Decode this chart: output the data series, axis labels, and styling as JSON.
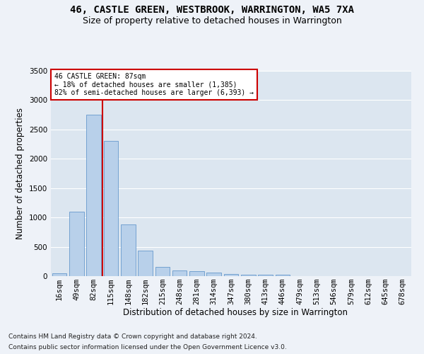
{
  "title1": "46, CASTLE GREEN, WESTBROOK, WARRINGTON, WA5 7XA",
  "title2": "Size of property relative to detached houses in Warrington",
  "xlabel": "Distribution of detached houses by size in Warrington",
  "ylabel": "Number of detached properties",
  "categories": [
    "16sqm",
    "49sqm",
    "82sqm",
    "115sqm",
    "148sqm",
    "182sqm",
    "215sqm",
    "248sqm",
    "281sqm",
    "314sqm",
    "347sqm",
    "380sqm",
    "413sqm",
    "446sqm",
    "479sqm",
    "513sqm",
    "546sqm",
    "579sqm",
    "612sqm",
    "645sqm",
    "678sqm"
  ],
  "values": [
    50,
    1100,
    2750,
    2300,
    880,
    430,
    160,
    100,
    90,
    55,
    40,
    30,
    30,
    30,
    0,
    0,
    0,
    0,
    0,
    0,
    0
  ],
  "bar_color": "#b8d0ea",
  "bar_edgecolor": "#6699cc",
  "vline_color": "#cc0000",
  "annotation_text": "46 CASTLE GREEN: 87sqm\n← 18% of detached houses are smaller (1,385)\n82% of semi-detached houses are larger (6,393) →",
  "annotation_box_facecolor": "#ffffff",
  "annotation_box_edgecolor": "#cc0000",
  "footer1": "Contains HM Land Registry data © Crown copyright and database right 2024.",
  "footer2": "Contains public sector information licensed under the Open Government Licence v3.0.",
  "ylim": [
    0,
    3500
  ],
  "yticks": [
    0,
    500,
    1000,
    1500,
    2000,
    2500,
    3000,
    3500
  ],
  "bg_color": "#eef2f8",
  "plot_bg_color": "#dce6f0",
  "grid_color": "#ffffff",
  "title1_fontsize": 10,
  "title2_fontsize": 9,
  "xlabel_fontsize": 8.5,
  "ylabel_fontsize": 8.5,
  "tick_fontsize": 7.5,
  "footer_fontsize": 6.5
}
